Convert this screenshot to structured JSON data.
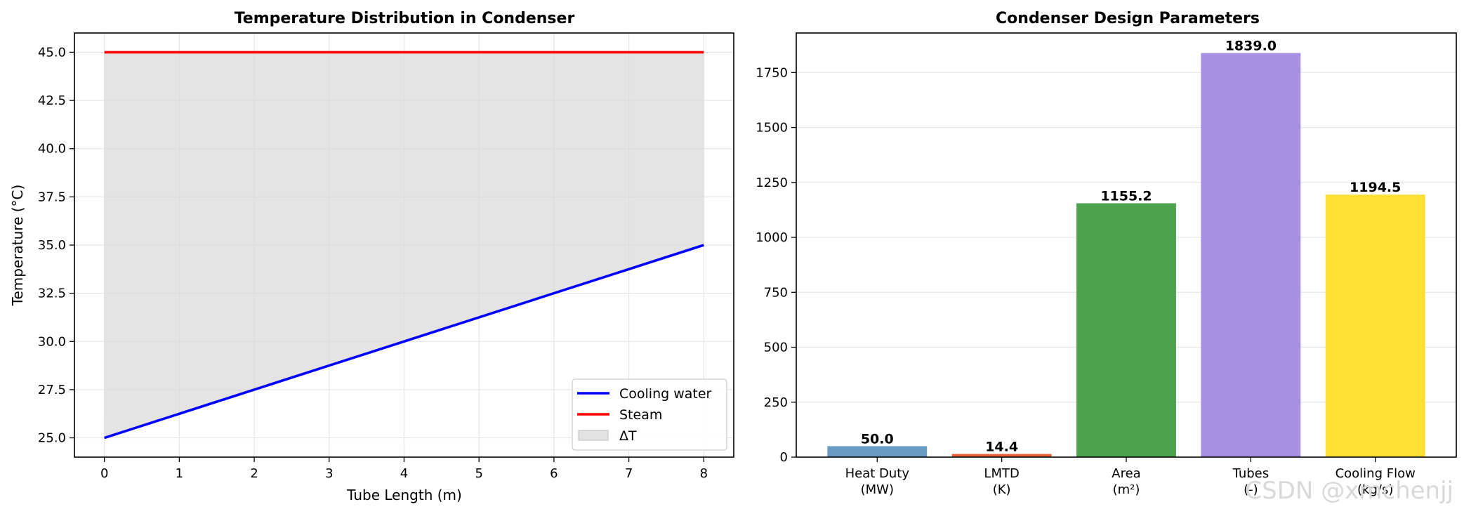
{
  "chart_data": [
    {
      "type": "line",
      "title": "Temperature Distribution in Condenser",
      "xlabel": "Tube Length (m)",
      "ylabel": "Temperature (°C)",
      "xlim": [
        -0.4,
        8.4
      ],
      "ylim": [
        24.0,
        46.0
      ],
      "xticks": [
        0,
        1,
        2,
        3,
        4,
        5,
        6,
        7,
        8
      ],
      "yticks": [
        25.0,
        27.5,
        30.0,
        32.5,
        35.0,
        37.5,
        40.0,
        42.5,
        45.0
      ],
      "grid": true,
      "legend_position": "lower-right",
      "series": [
        {
          "name": "Cooling water",
          "color": "#0000ff",
          "x": [
            0,
            8
          ],
          "y": [
            25.0,
            35.0
          ]
        },
        {
          "name": "Steam",
          "color": "#ff0000",
          "x": [
            0,
            8
          ],
          "y": [
            45.0,
            45.0
          ]
        }
      ],
      "fill": {
        "name": "ΔT",
        "color": "#d3d3d3",
        "between": [
          "Cooling water",
          "Steam"
        ]
      }
    },
    {
      "type": "bar",
      "title": "Condenser Design Parameters",
      "categories": [
        [
          "Heat Duty",
          "(MW)"
        ],
        [
          "LMTD",
          "(K)"
        ],
        [
          "Area",
          "(m²)"
        ],
        [
          "Tubes",
          "(-)"
        ],
        [
          "Cooling Flow",
          "(kg/s)"
        ]
      ],
      "values": [
        50.0,
        14.4,
        1155.2,
        1839.0,
        1194.5
      ],
      "value_labels": [
        "50.0",
        "14.4",
        "1155.2",
        "1839.0",
        "1194.5"
      ],
      "colors": [
        "#6b9bc3",
        "#e8603c",
        "#4ea24e",
        "#a78fe2",
        "#ffdf33"
      ],
      "ylim": [
        0,
        1930
      ],
      "yticks": [
        0,
        250,
        500,
        750,
        1000,
        1250,
        1500,
        1750
      ],
      "grid": true
    }
  ],
  "watermark": "CSDN @xmchenjj"
}
